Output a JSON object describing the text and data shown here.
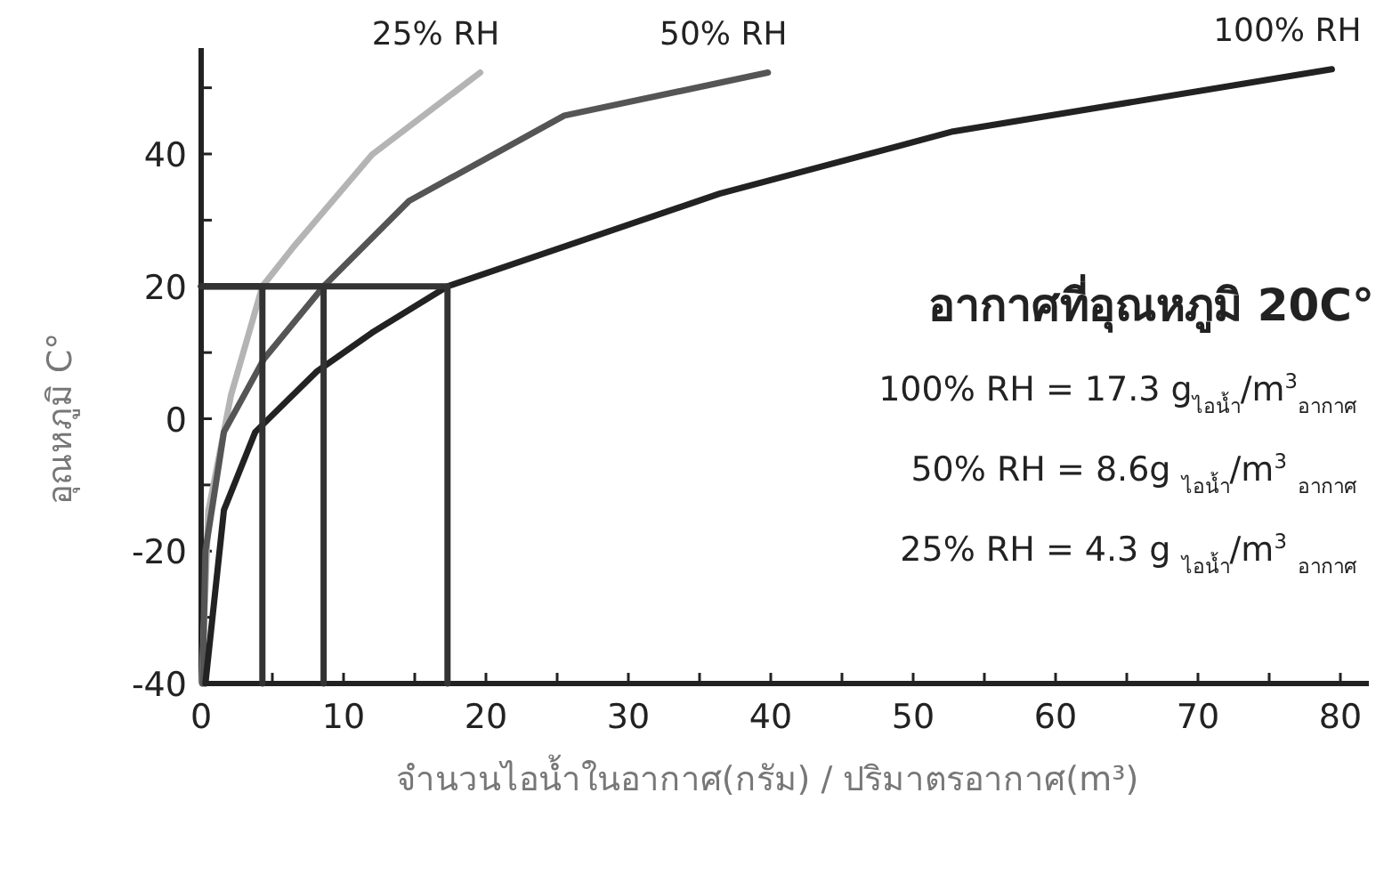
{
  "chart_data": {
    "type": "line",
    "xlabel": "จำนวนไอน้ำในอากาศ(กรัม) / ปริมาตรอากาศ(m³)",
    "ylabel": "อุณหภูมิ C°",
    "xlim": [
      0,
      82
    ],
    "ylim": [
      -40,
      56
    ],
    "xticks": [
      0,
      {
        "value": 5,
        "label": null
      },
      10,
      {
        "value": 15,
        "label": null
      },
      20,
      {
        "value": 25,
        "label": null
      },
      30,
      {
        "value": 35,
        "label": null
      },
      40,
      {
        "value": 45,
        "label": null
      },
      50,
      {
        "value": 55,
        "label": null
      },
      60,
      {
        "value": 65,
        "label": null
      },
      70,
      {
        "value": 75,
        "label": null
      },
      80
    ],
    "yticks": [
      -40,
      {
        "value": -30,
        "label": null
      },
      -20,
      {
        "value": -10,
        "label": null
      },
      0,
      {
        "value": 10,
        "label": null
      },
      20,
      {
        "value": 30,
        "label": null
      },
      40,
      {
        "value": 50,
        "label": null
      }
    ],
    "grid": false,
    "legend": false,
    "marker": "none",
    "line_style": "solid",
    "series": [
      {
        "name": "25% RH",
        "color": "#b4b4b4",
        "x": [
          0.05,
          0.5,
          2.1,
          4.3,
          6.5,
          12,
          19.6
        ],
        "values": [
          -40,
          -14,
          3.6,
          20,
          26,
          39.9,
          52.3
        ]
      },
      {
        "name": "50% RH",
        "color": "#555555",
        "x": [
          0.1,
          0.3,
          1.6,
          4.4,
          8.6,
          14.6,
          25.5,
          39.8
        ],
        "values": [
          -40,
          -20,
          -2,
          9,
          20,
          32.9,
          45.8,
          52.3
        ]
      },
      {
        "name": "100% RH",
        "color": "#222222",
        "x": [
          0.3,
          1.6,
          3.8,
          8.1,
          12,
          17.3,
          36.4,
          52.8,
          79.4
        ],
        "values": [
          -40,
          -13.8,
          -2,
          7.1,
          13,
          20,
          34,
          43.4,
          52.8
        ]
      },
      {
        "color": "#333333",
        "x": [
          4.3,
          4.3,
          0
        ],
        "values": [
          -40,
          20,
          20
        ]
      },
      {
        "color": "#333333",
        "x": [
          8.6,
          8.6,
          0
        ],
        "values": [
          -40,
          20,
          20
        ]
      },
      {
        "color": "#333333",
        "x": [
          17.3,
          17.3,
          0
        ],
        "values": [
          -40,
          20,
          20
        ]
      }
    ],
    "annotations": [
      "อากาศที่อุณหภูมิ 20C°",
      "100% RH = 17.3 g$_{ไอน้ำ}$/m$^{3}$$_{อากาศ}$",
      "50% RH = 8.6g $_{ไอน้ำ}$/m$^{3}$ $_{อากาศ}$",
      "25% RH = 4.3 g $_{ไอน้ำ}$/m$^{3}$ $_{อากาศ}$"
    ]
  }
}
